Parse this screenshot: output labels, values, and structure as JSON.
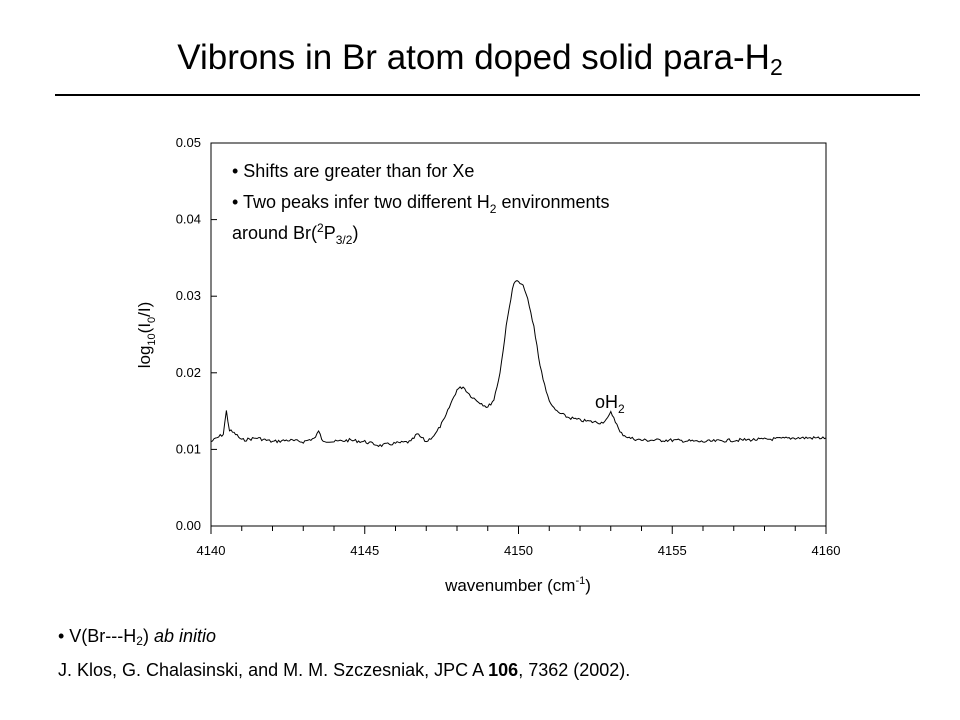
{
  "slide": {
    "title_main": "Vibrons in Br atom doped solid para-H",
    "title_sub": "2"
  },
  "chart_data": {
    "type": "line",
    "xlabel": "wavenumber (cm",
    "xlabel_sup": "-1",
    "xlabel_end": ")",
    "ylabel": "log",
    "ylabel_sub_10": "10",
    "ylabel_mid": "(I",
    "ylabel_sub_0": "0",
    "ylabel_end": "/I)",
    "xlim": [
      4140,
      4160
    ],
    "ylim": [
      0,
      0.05
    ],
    "x_ticks": [
      4140,
      4145,
      4150,
      4155,
      4160
    ],
    "x_minor_step": 1,
    "y_ticks": [
      0.0,
      0.01,
      0.02,
      0.03,
      0.04,
      0.05
    ],
    "y_tick_labels": [
      "0.00",
      "0.01",
      "0.02",
      "0.03",
      "0.04",
      "0.05"
    ],
    "grid": false,
    "series": [
      {
        "color": "#000000",
        "x": [
          4140.0,
          4140.2,
          4140.4,
          4140.5,
          4140.6,
          4140.8,
          4141.0,
          4141.5,
          4142.0,
          4142.5,
          4143.0,
          4143.4,
          4143.5,
          4143.6,
          4144.0,
          4144.5,
          4145.0,
          4145.5,
          4146.0,
          4146.5,
          4146.7,
          4147.0,
          4147.3,
          4147.6,
          4147.8,
          4148.0,
          4148.2,
          4148.4,
          4148.6,
          4148.8,
          4149.0,
          4149.2,
          4149.4,
          4149.6,
          4149.8,
          4149.9,
          4150.0,
          4150.1,
          4150.2,
          4150.3,
          4150.5,
          4150.7,
          4150.9,
          4151.1,
          4151.3,
          4151.6,
          4152.0,
          4152.4,
          4152.7,
          4152.9,
          4153.0,
          4153.1,
          4153.3,
          4153.6,
          4154.0,
          4155.0,
          4156.0,
          4157.0,
          4158.0,
          4159.0,
          4160.0
        ],
        "y": [
          0.011,
          0.0115,
          0.012,
          0.015,
          0.0125,
          0.012,
          0.0112,
          0.0115,
          0.011,
          0.0112,
          0.011,
          0.0115,
          0.0125,
          0.0112,
          0.011,
          0.0112,
          0.011,
          0.0105,
          0.0108,
          0.011,
          0.012,
          0.011,
          0.012,
          0.014,
          0.016,
          0.0178,
          0.0182,
          0.0172,
          0.0165,
          0.016,
          0.0155,
          0.0165,
          0.02,
          0.026,
          0.031,
          0.032,
          0.0318,
          0.0315,
          0.031,
          0.0295,
          0.026,
          0.021,
          0.0175,
          0.0155,
          0.0148,
          0.0142,
          0.0138,
          0.0136,
          0.0135,
          0.014,
          0.0148,
          0.0142,
          0.0122,
          0.0115,
          0.0112,
          0.0112,
          0.011,
          0.0112,
          0.0113,
          0.0115,
          0.0115
        ]
      }
    ],
    "annotations": {
      "bullet1": "• Shifts are greater than for Xe",
      "bullet2_a": "• Two peaks infer two different H",
      "bullet2_sub": "2",
      "bullet2_b": " environments",
      "bullet3_a": "around Br(",
      "bullet3_sup": "2",
      "bullet3_b": "P",
      "bullet3_sub": "3/2",
      "bullet3_c": ")",
      "peak_label_main": "oH",
      "peak_label_sub": "2"
    }
  },
  "refs": {
    "bullet_prefix": "• V(Br---H",
    "bullet_sub": "2",
    "bullet_mid": ") ",
    "bullet_italic": "ab initio",
    "citation_a": "J. Klos, G. Chalasinski, and M. M. Szczesniak, JPC A ",
    "citation_bold": "106",
    "citation_b": ", 7362 (2002)."
  }
}
